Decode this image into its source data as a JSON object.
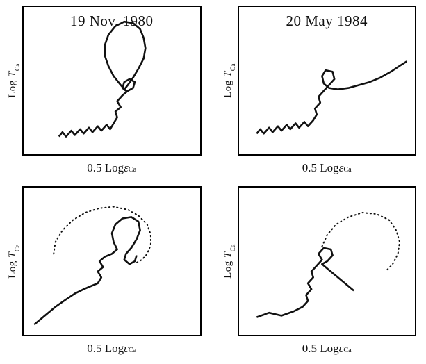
{
  "figure": {
    "y_axis": {
      "prefix": "Log ",
      "symbol": "T",
      "subscript": "Ca"
    },
    "x_axis": {
      "prefix": "0.5 Log ",
      "symbol": "ε",
      "subscript": "Ca"
    }
  },
  "chart_data": [
    {
      "type": "line",
      "id": "top-left",
      "title": "19 Nov. 1980",
      "xlabel": "0.5 Log ε_Ca",
      "ylabel": "Log T_Ca",
      "axes_ticks": "none",
      "coords": "percent of plot box, y increases downward",
      "series": [
        {
          "name": "trajectory-solid",
          "style": "solid",
          "points": [
            [
              20,
              88
            ],
            [
              22,
              85
            ],
            [
              24,
              88
            ],
            [
              27,
              84
            ],
            [
              29,
              87
            ],
            [
              32,
              83
            ],
            [
              34,
              86
            ],
            [
              37,
              82
            ],
            [
              39,
              85
            ],
            [
              42,
              81
            ],
            [
              44,
              84
            ],
            [
              47,
              80
            ],
            [
              49,
              83
            ],
            [
              51,
              79
            ],
            [
              53,
              75
            ],
            [
              52,
              71
            ],
            [
              55,
              68
            ],
            [
              53,
              64
            ],
            [
              56,
              60
            ],
            [
              59,
              57
            ],
            [
              62,
              55
            ],
            [
              63,
              51
            ],
            [
              60,
              49
            ],
            [
              57,
              51
            ],
            [
              56,
              55
            ],
            [
              58,
              57
            ],
            [
              55,
              53
            ],
            [
              51,
              47
            ],
            [
              48,
              40
            ],
            [
              46,
              33
            ],
            [
              46,
              26
            ],
            [
              48,
              19
            ],
            [
              52,
              13
            ],
            [
              57,
              10
            ],
            [
              62,
              11
            ],
            [
              66,
              15
            ],
            [
              68,
              21
            ],
            [
              69,
              28
            ],
            [
              68,
              35
            ],
            [
              65,
              42
            ],
            [
              62,
              48
            ],
            [
              59,
              53
            ],
            [
              57,
              56
            ]
          ]
        }
      ]
    },
    {
      "type": "line",
      "id": "top-right",
      "title": "20 May 1984",
      "xlabel": "0.5 Log ε_Ca",
      "ylabel": "Log T_Ca",
      "axes_ticks": "none",
      "coords": "percent of plot box, y increases downward",
      "series": [
        {
          "name": "trajectory-solid",
          "style": "solid",
          "points": [
            [
              10,
              86
            ],
            [
              12,
              83
            ],
            [
              14,
              86
            ],
            [
              17,
              82
            ],
            [
              19,
              85
            ],
            [
              22,
              81
            ],
            [
              24,
              84
            ],
            [
              27,
              80
            ],
            [
              29,
              83
            ],
            [
              32,
              79
            ],
            [
              34,
              82
            ],
            [
              37,
              78
            ],
            [
              39,
              81
            ],
            [
              42,
              77
            ],
            [
              44,
              73
            ],
            [
              43,
              69
            ],
            [
              46,
              65
            ],
            [
              45,
              61
            ],
            [
              48,
              57
            ],
            [
              51,
              53
            ],
            [
              54,
              49
            ],
            [
              53,
              44
            ],
            [
              49,
              43
            ],
            [
              47,
              47
            ],
            [
              48,
              52
            ],
            [
              51,
              55
            ],
            [
              56,
              56
            ],
            [
              62,
              55
            ],
            [
              68,
              53
            ],
            [
              74,
              51
            ],
            [
              80,
              48
            ],
            [
              86,
              44
            ],
            [
              91,
              40
            ],
            [
              95,
              37
            ]
          ]
        }
      ]
    },
    {
      "type": "line",
      "id": "bottom-left",
      "title": "",
      "xlabel": "0.5 Log ε_Ca",
      "ylabel": "Log T_Ca",
      "axes_ticks": "none",
      "coords": "percent of plot box, y increases downward",
      "series": [
        {
          "name": "trajectory-solid",
          "style": "solid",
          "points": [
            [
              6,
              93
            ],
            [
              12,
              87
            ],
            [
              18,
              81
            ],
            [
              24,
              76
            ],
            [
              29,
              72
            ],
            [
              34,
              69
            ],
            [
              38,
              67
            ],
            [
              42,
              65
            ],
            [
              44,
              61
            ],
            [
              42,
              57
            ],
            [
              45,
              54
            ],
            [
              43,
              50
            ],
            [
              46,
              47
            ],
            [
              50,
              45
            ],
            [
              53,
              42
            ],
            [
              51,
              37
            ],
            [
              50,
              31
            ],
            [
              52,
              25
            ],
            [
              56,
              21
            ],
            [
              61,
              20
            ],
            [
              65,
              23
            ],
            [
              66,
              29
            ],
            [
              64,
              35
            ],
            [
              61,
              41
            ],
            [
              58,
              45
            ],
            [
              57,
              49
            ],
            [
              60,
              52
            ],
            [
              63,
              50
            ],
            [
              64,
              46
            ]
          ]
        },
        {
          "name": "reference-dotted",
          "style": "dotted",
          "points": [
            [
              17,
              45
            ],
            [
              18,
              37
            ],
            [
              22,
              29
            ],
            [
              28,
              22
            ],
            [
              35,
              17
            ],
            [
              43,
              14
            ],
            [
              51,
              13
            ],
            [
              59,
              15
            ],
            [
              65,
              19
            ],
            [
              70,
              25
            ],
            [
              72,
              32
            ],
            [
              72,
              39
            ],
            [
              70,
              45
            ],
            [
              67,
              49
            ],
            [
              64,
              51
            ]
          ]
        }
      ]
    },
    {
      "type": "line",
      "id": "bottom-right",
      "title": "",
      "xlabel": "0.5 Log ε_Ca",
      "ylabel": "Log T_Ca",
      "axes_ticks": "none",
      "coords": "percent of plot box, y increases downward",
      "series": [
        {
          "name": "trajectory-solid",
          "style": "solid",
          "points": [
            [
              10,
              88
            ],
            [
              17,
              85
            ],
            [
              24,
              87
            ],
            [
              31,
              84
            ],
            [
              36,
              81
            ],
            [
              39,
              77
            ],
            [
              38,
              73
            ],
            [
              41,
              69
            ],
            [
              39,
              65
            ],
            [
              42,
              61
            ],
            [
              41,
              57
            ],
            [
              44,
              53
            ],
            [
              47,
              49
            ],
            [
              45,
              45
            ],
            [
              48,
              41
            ],
            [
              52,
              42
            ],
            [
              53,
              46
            ],
            [
              50,
              50
            ],
            [
              47,
              52
            ],
            [
              51,
              56
            ],
            [
              56,
              61
            ],
            [
              61,
              66
            ],
            [
              65,
              70
            ]
          ]
        },
        {
          "name": "reference-dotted",
          "style": "dotted",
          "points": [
            [
              47,
              40
            ],
            [
              50,
              32
            ],
            [
              55,
              25
            ],
            [
              62,
              20
            ],
            [
              70,
              17
            ],
            [
              78,
              18
            ],
            [
              85,
              22
            ],
            [
              89,
              29
            ],
            [
              91,
              37
            ],
            [
              90,
              45
            ],
            [
              87,
              52
            ],
            [
              83,
              57
            ]
          ]
        }
      ]
    }
  ]
}
